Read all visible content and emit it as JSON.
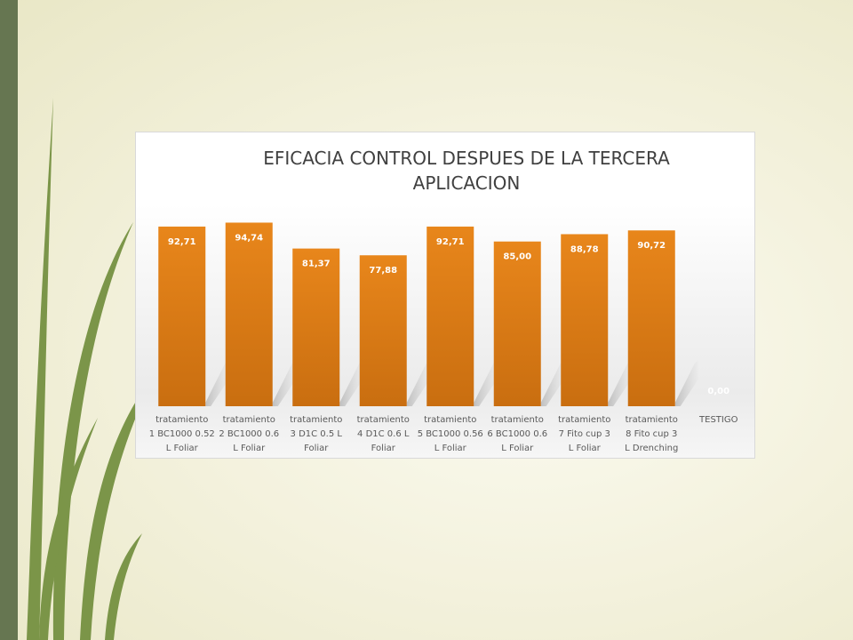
{
  "theme": {
    "band_color": "#667651",
    "accent_orange": "#ec7f1f",
    "grass_color": "#6f8c3a"
  },
  "chart_data": {
    "type": "bar",
    "title": "EFICACIA CONTROL DESPUES DE LA TERCERA APLICACION",
    "title_lines": [
      "EFICACIA CONTROL DESPUES DE LA TERCERA",
      "APLICACION"
    ],
    "categories": [
      "tratamiento 1 BC1000 0.52 L Foliar",
      "tratamiento 2 BC1000 0.6 L Foliar",
      "tratamiento 3 D1C 0.5 L Foliar",
      "tratamiento 4 D1C 0.6 L Foliar",
      "tratamiento 5 BC1000 0.56 L Foliar",
      "tratamiento 6 BC1000 0.6 L Foliar",
      "tratamiento 7 Fito cup 3 L Foliar",
      "tratamiento 8 Fito cup 3 L Drenching",
      "TESTIGO"
    ],
    "category_lines": [
      [
        "tratamiento",
        "1 BC1000 0.52",
        "L Foliar"
      ],
      [
        "tratamiento",
        "2 BC1000 0.6",
        "L Foliar"
      ],
      [
        "tratamiento",
        "3 D1C 0.5 L",
        "Foliar"
      ],
      [
        "tratamiento",
        "4 D1C 0.6 L",
        "Foliar"
      ],
      [
        "tratamiento",
        "5 BC1000 0.56",
        "L Foliar"
      ],
      [
        "tratamiento",
        "6 BC1000 0.6",
        "L Foliar"
      ],
      [
        "tratamiento",
        "7 Fito cup 3",
        "L Foliar"
      ],
      [
        "tratamiento",
        "8 Fito cup 3",
        "L Drenching"
      ],
      [
        "TESTIGO"
      ]
    ],
    "values": [
      92.71,
      94.74,
      81.37,
      77.88,
      92.71,
      85.0,
      88.78,
      90.72,
      0.0
    ],
    "value_labels": [
      "92,71",
      "94,74",
      "81,37",
      "77,88",
      "92,71",
      "85,00",
      "88,78",
      "90,72",
      "0,00"
    ],
    "ylim": [
      0,
      100
    ],
    "grid": false,
    "legend": "none",
    "bar_color": "#e57d12"
  }
}
